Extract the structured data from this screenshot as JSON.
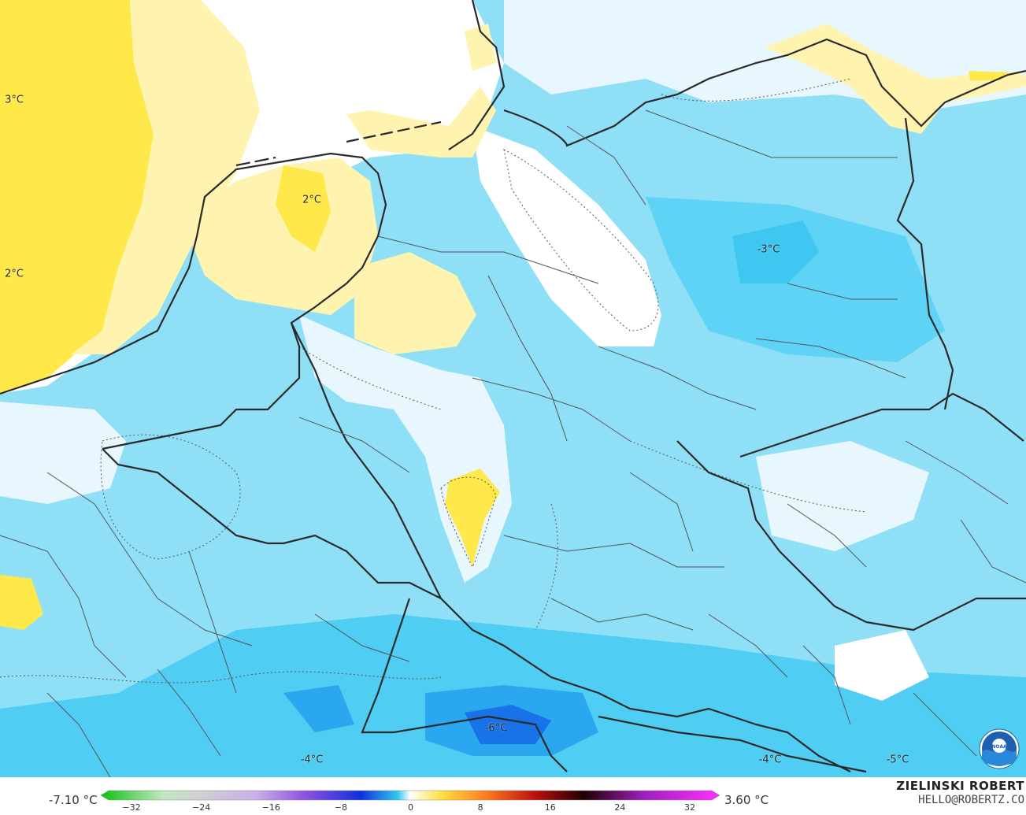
{
  "map": {
    "temperature_labels": [
      {
        "text": "3°C"
      },
      {
        "text": "2°C"
      },
      {
        "text": "2°C"
      },
      {
        "text": "-3°C"
      },
      {
        "text": "-6°C"
      },
      {
        "text": "-4°C"
      },
      {
        "text": "-4°C"
      },
      {
        "text": "-5°C"
      }
    ],
    "logo": "noaa-logo"
  },
  "legend": {
    "min_label": "-7.10 °C",
    "max_label": "3.60 °C",
    "ticks": [
      "−32",
      "−24",
      "−16",
      "−8",
      "0",
      "8",
      "16",
      "24",
      "32"
    ],
    "colors": {
      "cold_end": "#10c010",
      "mid_cold": "#8040e0",
      "deep_blue": "#1020e0",
      "cyan": "#30c8f0",
      "zero": "#ffffff",
      "warm": "#ffe040",
      "hot": "#c01010",
      "max": "#ff30ff"
    }
  },
  "credit": {
    "author": "ZIELINSKI ROBERT",
    "email": "HELLO@ROBERTZ.CO"
  }
}
